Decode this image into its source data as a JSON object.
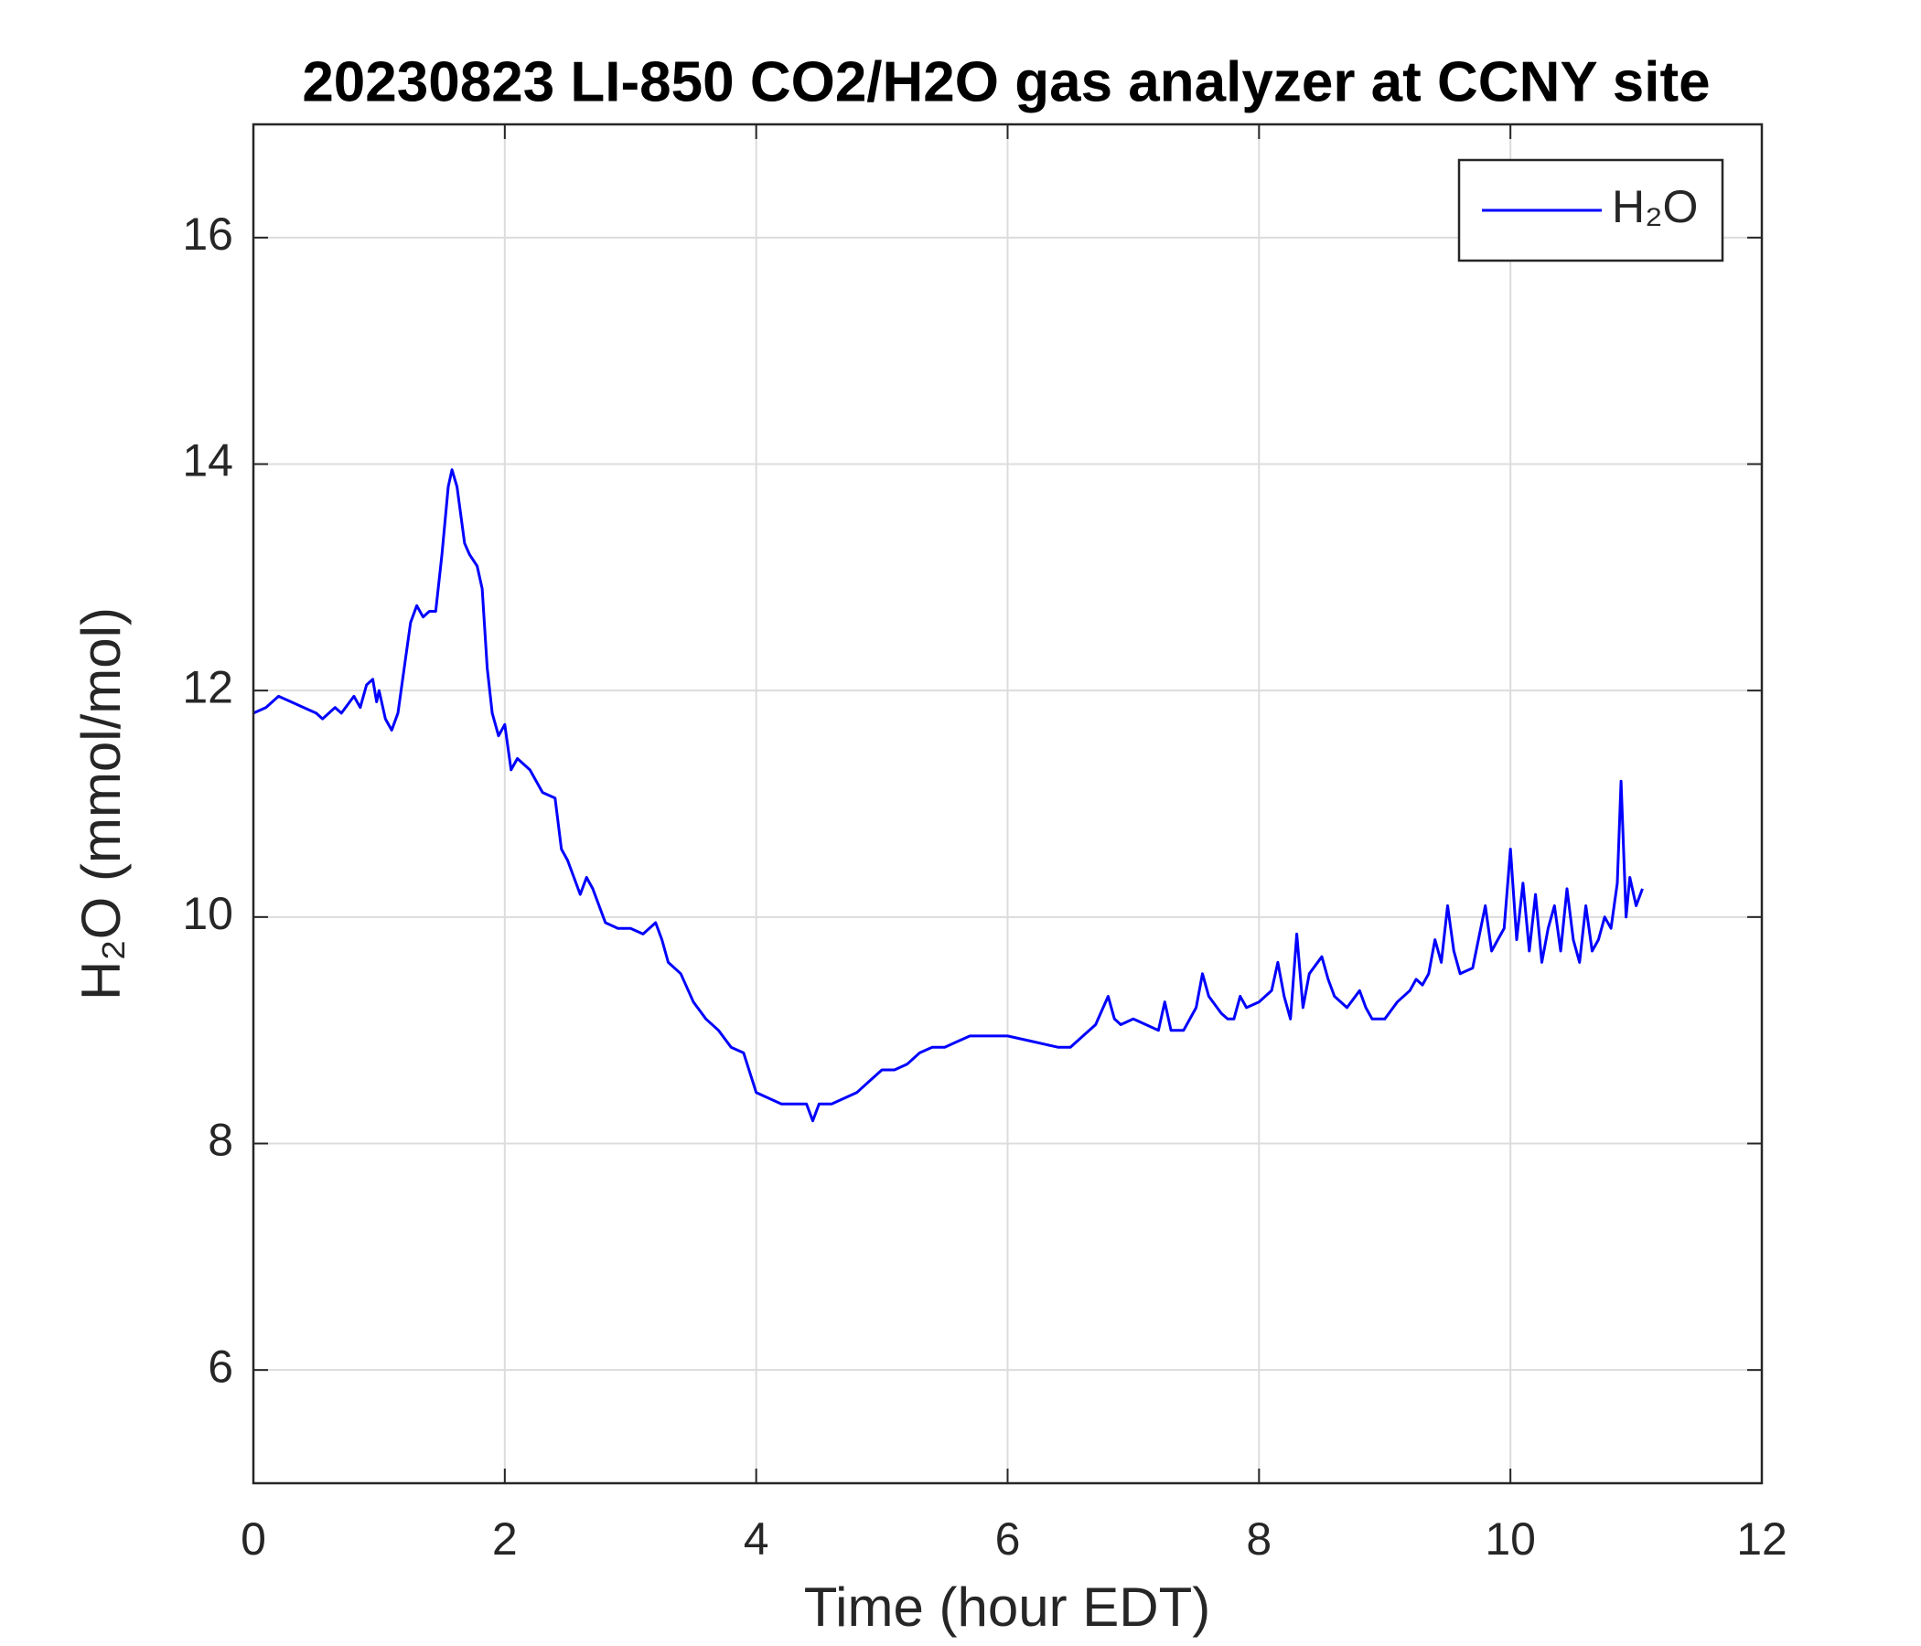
{
  "chart_data": {
    "type": "line",
    "title": "20230823 LI-850 CO2/H2O gas analyzer at CCNY site",
    "xlabel": "Time (hour EDT)",
    "ylabel": "H₂O (mmol/mol)",
    "xlim": [
      0,
      12
    ],
    "xticks": [
      0,
      2,
      4,
      6,
      8,
      10,
      12
    ],
    "ylim": [
      5,
      17
    ],
    "yticks": [
      6,
      8,
      10,
      12,
      14,
      16
    ],
    "grid": true,
    "legend": "upper right",
    "x": [
      0,
      0.1,
      0.2,
      0.3,
      0.4,
      0.5,
      0.55,
      0.65,
      0.7,
      0.8,
      0.85,
      0.9,
      0.95,
      0.98,
      1.0,
      1.05,
      1.1,
      1.15,
      1.2,
      1.25,
      1.3,
      1.35,
      1.4,
      1.45,
      1.5,
      1.55,
      1.58,
      1.62,
      1.68,
      1.72,
      1.78,
      1.82,
      1.86,
      1.9,
      1.95,
      2.0,
      2.05,
      2.1,
      2.2,
      2.3,
      2.4,
      2.45,
      2.5,
      2.55,
      2.6,
      2.65,
      2.7,
      2.8,
      2.9,
      3.0,
      3.1,
      3.2,
      3.25,
      3.3,
      3.4,
      3.5,
      3.6,
      3.7,
      3.8,
      3.9,
      4.0,
      4.1,
      4.2,
      4.3,
      4.4,
      4.45,
      4.5,
      4.6,
      4.7,
      4.8,
      4.9,
      5.0,
      5.1,
      5.2,
      5.3,
      5.4,
      5.5,
      5.6,
      5.7,
      5.8,
      5.9,
      6.0,
      6.2,
      6.4,
      6.5,
      6.6,
      6.7,
      6.8,
      6.85,
      6.9,
      7.0,
      7.1,
      7.2,
      7.25,
      7.3,
      7.4,
      7.5,
      7.55,
      7.6,
      7.7,
      7.75,
      7.8,
      7.85,
      7.9,
      8.0,
      8.1,
      8.15,
      8.2,
      8.25,
      8.3,
      8.35,
      8.4,
      8.5,
      8.55,
      8.6,
      8.7,
      8.8,
      8.85,
      8.9,
      9.0,
      9.1,
      9.2,
      9.25,
      9.3,
      9.35,
      9.4,
      9.45,
      9.5,
      9.55,
      9.6,
      9.7,
      9.8,
      9.85,
      9.9,
      9.95,
      10.0,
      10.05,
      10.1,
      10.15,
      10.2,
      10.25,
      10.3,
      10.35,
      10.4,
      10.45,
      10.5,
      10.55,
      10.6,
      10.65,
      10.7,
      10.75,
      10.8,
      10.85,
      10.88,
      10.92,
      10.95,
      11.0,
      11.05
    ],
    "series": [
      {
        "name": "H₂O",
        "color": "#0000ff",
        "values": [
          11.8,
          11.85,
          11.95,
          11.9,
          11.85,
          11.8,
          11.75,
          11.85,
          11.8,
          11.95,
          11.85,
          12.05,
          12.1,
          11.9,
          12.0,
          11.75,
          11.65,
          11.8,
          12.2,
          12.6,
          12.75,
          12.65,
          12.7,
          12.7,
          13.2,
          13.8,
          13.95,
          13.8,
          13.3,
          13.2,
          13.1,
          12.9,
          12.2,
          11.8,
          11.6,
          11.7,
          11.3,
          11.4,
          11.3,
          11.1,
          11.05,
          10.6,
          10.5,
          10.35,
          10.2,
          10.35,
          10.25,
          9.95,
          9.9,
          9.9,
          9.85,
          9.95,
          9.8,
          9.6,
          9.5,
          9.25,
          9.1,
          9.0,
          8.85,
          8.8,
          8.45,
          8.4,
          8.35,
          8.35,
          8.35,
          8.2,
          8.35,
          8.35,
          8.4,
          8.45,
          8.55,
          8.65,
          8.65,
          8.7,
          8.8,
          8.85,
          8.85,
          8.9,
          8.95,
          8.95,
          8.95,
          8.95,
          8.9,
          8.85,
          8.85,
          8.95,
          9.05,
          9.3,
          9.1,
          9.05,
          9.1,
          9.05,
          9.0,
          9.25,
          9.0,
          9.0,
          9.2,
          9.5,
          9.3,
          9.15,
          9.1,
          9.1,
          9.3,
          9.2,
          9.25,
          9.35,
          9.6,
          9.3,
          9.1,
          9.85,
          9.2,
          9.5,
          9.65,
          9.45,
          9.3,
          9.2,
          9.35,
          9.2,
          9.1,
          9.1,
          9.25,
          9.35,
          9.45,
          9.4,
          9.5,
          9.8,
          9.6,
          10.1,
          9.7,
          9.5,
          9.55,
          10.1,
          9.7,
          9.8,
          9.9,
          10.6,
          9.8,
          10.3,
          9.7,
          10.2,
          9.6,
          9.9,
          10.1,
          9.7,
          10.25,
          9.8,
          9.6,
          10.1,
          9.7,
          9.8,
          10.0,
          9.9,
          10.3,
          11.2,
          10.0,
          10.35,
          10.1,
          10.25
        ]
      }
    ]
  }
}
